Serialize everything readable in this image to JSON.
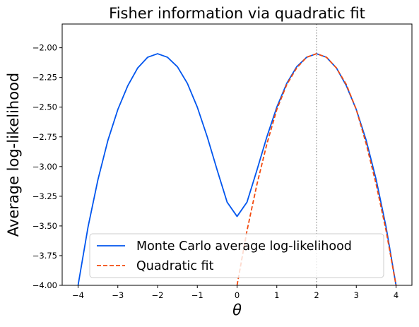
{
  "chart_data": {
    "type": "line",
    "title": "Fisher information via quadratic fit",
    "xlabel": "θ",
    "ylabel": "Average log-likelihood",
    "xlim": [
      -4.4,
      4.4
    ],
    "ylim": [
      -4.0,
      -1.8
    ],
    "x_ticks": [
      -4,
      -3,
      -2,
      -1,
      0,
      1,
      2,
      3,
      4
    ],
    "x_tick_labels": [
      "−4",
      "−3",
      "−2",
      "−1",
      "0",
      "1",
      "2",
      "3",
      "4"
    ],
    "y_ticks": [
      -4.0,
      -3.75,
      -3.5,
      -3.25,
      -3.0,
      -2.75,
      -2.5,
      -2.25,
      -2.0
    ],
    "y_tick_labels": [
      "−4.00",
      "−3.75",
      "−3.50",
      "−3.25",
      "−3.00",
      "−2.75",
      "−2.50",
      "−2.25",
      "−2.00"
    ],
    "grid": false,
    "legend_position": "lower-left",
    "reference_line": {
      "x": 2,
      "style": "dotted",
      "color": "#888888"
    },
    "series": [
      {
        "name": "Monte Carlo average log-likelihood",
        "color": "#0055ee",
        "style": "solid",
        "x": [
          -4.0,
          -3.75,
          -3.5,
          -3.25,
          -3.0,
          -2.75,
          -2.5,
          -2.25,
          -2.0,
          -1.75,
          -1.5,
          -1.25,
          -1.0,
          -0.75,
          -0.5,
          -0.25,
          0.0,
          0.25,
          0.5,
          0.75,
          1.0,
          1.25,
          1.5,
          1.75,
          2.0,
          2.25,
          2.5,
          2.75,
          3.0,
          3.25,
          3.5,
          3.75,
          4.0
        ],
        "y": [
          -4.0,
          -3.51,
          -3.11,
          -2.78,
          -2.52,
          -2.32,
          -2.17,
          -2.08,
          -2.05,
          -2.08,
          -2.16,
          -2.3,
          -2.5,
          -2.75,
          -3.03,
          -3.3,
          -3.42,
          -3.3,
          -3.03,
          -2.75,
          -2.5,
          -2.3,
          -2.16,
          -2.08,
          -2.05,
          -2.08,
          -2.17,
          -2.32,
          -2.52,
          -2.78,
          -3.11,
          -3.51,
          -4.0
        ]
      },
      {
        "name": "Quadratic fit",
        "color": "#f24a0f",
        "style": "dashed",
        "x": [
          0.0,
          0.25,
          0.5,
          0.75,
          1.0,
          1.25,
          1.5,
          1.75,
          2.0,
          2.25,
          2.5,
          2.75,
          3.0,
          3.25,
          3.5,
          3.75,
          4.0
        ],
        "y": [
          -4.0,
          -3.54,
          -3.15,
          -2.81,
          -2.52,
          -2.31,
          -2.17,
          -2.08,
          -2.05,
          -2.08,
          -2.17,
          -2.31,
          -2.52,
          -2.81,
          -3.15,
          -3.54,
          -4.0
        ]
      }
    ]
  }
}
